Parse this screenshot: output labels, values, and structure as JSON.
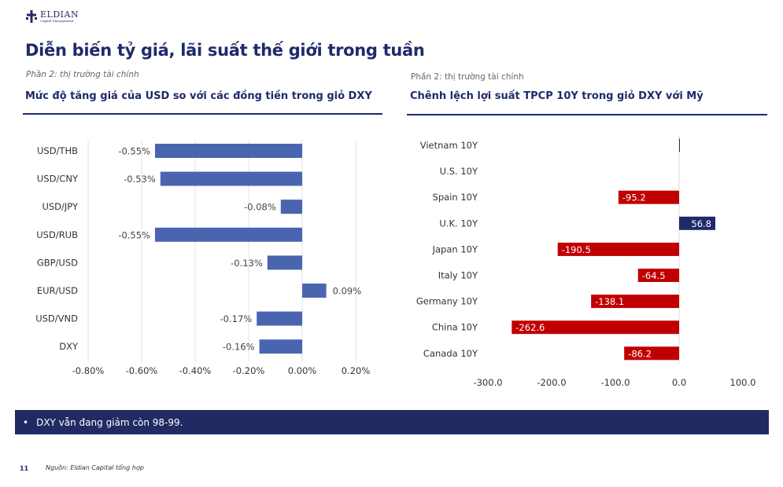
{
  "brand": {
    "name": "ELDIAN",
    "tagline": "Capital Management"
  },
  "page_title": "Diễn biến tỷ giá, lãi suất thế giới trong tuần",
  "left_panel": {
    "section": "Phần 2: thị trường tài chính",
    "subtitle": "Mức độ tăng giá của USD so với các đồng tiền trong giỏ DXY"
  },
  "right_panel": {
    "section": "Phần 2: thị trường tài chính",
    "subtitle": "Chênh lệch lợi suất TPCP 10Y trong giỏ DXY với Mỹ"
  },
  "bullet": {
    "mark": "•",
    "text": "DXY vẫn đang giảm còn 98-99."
  },
  "footer": {
    "page_number": "11",
    "source": "Nguồn: Eldian Capital tổng hợp"
  },
  "chart_data": [
    {
      "type": "bar",
      "orientation": "horizontal",
      "categories": [
        "USD/THB",
        "USD/CNY",
        "USD/JPY",
        "USD/RUB",
        "GBP/USD",
        "EUR/USD",
        "USD/VND",
        "DXY"
      ],
      "values": [
        -0.55,
        -0.53,
        -0.08,
        -0.55,
        -0.13,
        0.09,
        -0.17,
        -0.16
      ],
      "data_labels": [
        "-0.55%",
        "-0.53%",
        "-0.08%",
        "-0.55%",
        "-0.13%",
        "0.09%",
        "-0.17%",
        "-0.16%"
      ],
      "xlim": [
        -0.8,
        0.2
      ],
      "xticks": [
        -0.8,
        -0.6,
        -0.4,
        -0.2,
        0.0,
        0.2
      ],
      "xtick_labels": [
        "-0.80%",
        "-0.60%",
        "-0.40%",
        "-0.20%",
        "0.00%",
        "0.20%"
      ],
      "grid": true,
      "color": "#4a65b0"
    },
    {
      "type": "bar",
      "orientation": "horizontal",
      "categories": [
        "Vietnam 10Y",
        "U.S. 10Y",
        "Spain 10Y",
        "U.K. 10Y",
        "Japan 10Y",
        "Italy 10Y",
        "Germany 10Y",
        "China 10Y",
        "Canada 10Y"
      ],
      "values": [
        0.3,
        0,
        -95.2,
        56.8,
        -190.5,
        -64.5,
        -138.1,
        -262.6,
        -86.2
      ],
      "data_labels": [
        "",
        "",
        "-95.2",
        "56.8",
        "-190.5",
        "-64.5",
        "-138.1",
        "-262.6",
        "-86.2"
      ],
      "xlim": [
        -300,
        100
      ],
      "xticks": [
        -300,
        -200,
        -100,
        0,
        100
      ],
      "xtick_labels": [
        "-300.0",
        "-200.0",
        "-100.0",
        "0.0",
        "100.0"
      ],
      "grid": false,
      "negative_color": "#c00000",
      "positive_color": "#1f2a6b"
    }
  ]
}
